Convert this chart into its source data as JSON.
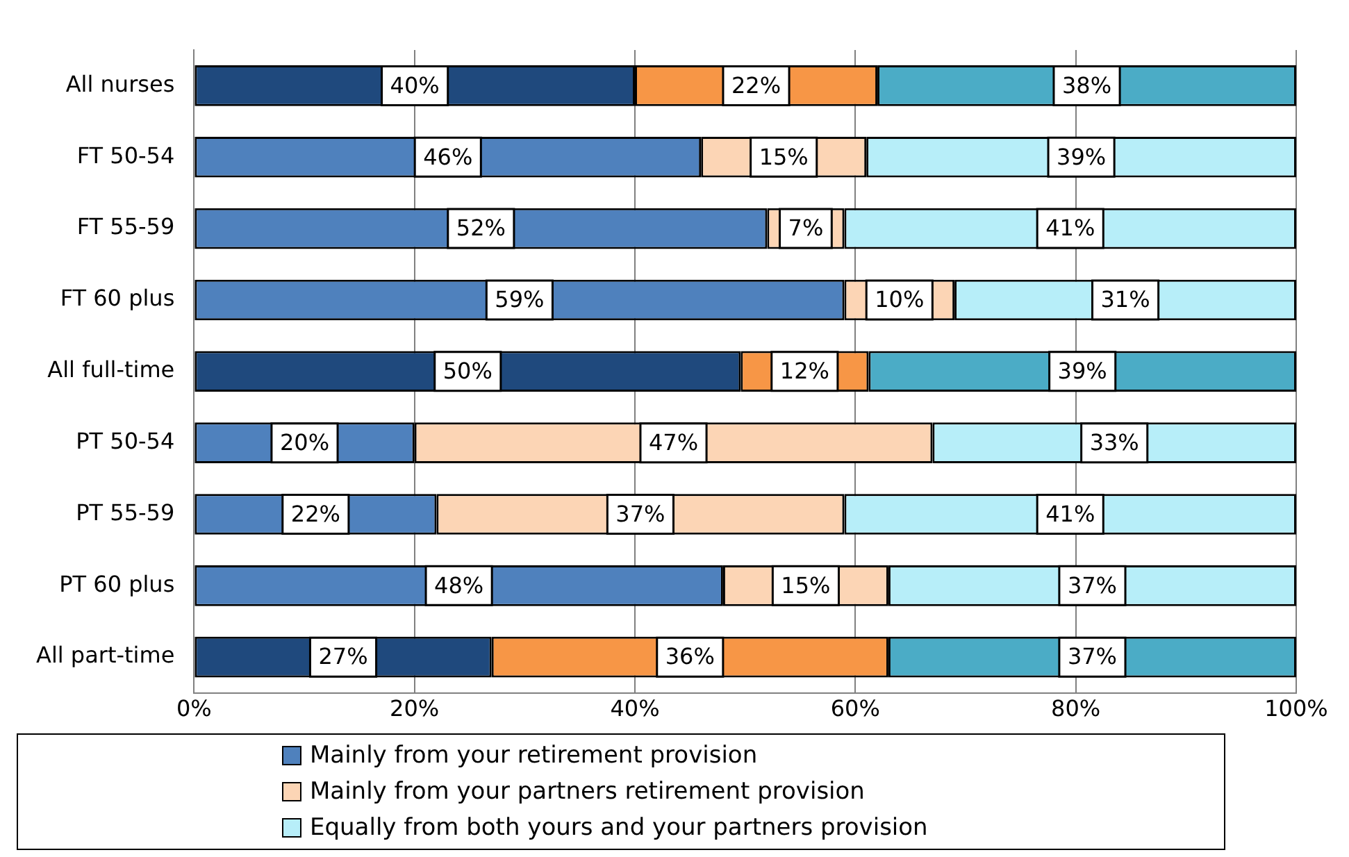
{
  "chart_data": {
    "type": "bar",
    "orientation": "horizontal",
    "stacked": true,
    "categories": [
      "All nurses",
      "FT 50-54",
      "FT 55-59",
      "FT 60 plus",
      "All full-time",
      "PT 50-54",
      "PT 55-59",
      "PT 60 plus",
      "All part-time"
    ],
    "series": [
      {
        "name": "Mainly from your retirement provision",
        "color": "#4f81bd",
        "colors": [
          "#1f497d",
          "#4f81bd",
          "#4f81bd",
          "#4f81bd",
          "#1f497d",
          "#4f81bd",
          "#4f81bd",
          "#4f81bd",
          "#1f497d"
        ],
        "values": [
          40,
          46,
          52,
          59,
          49.6,
          20,
          22,
          48,
          27
        ],
        "value_labels": [
          "40%",
          "46%",
          "52%",
          "59%",
          "50%",
          "20%",
          "22%",
          "48%",
          "27%"
        ]
      },
      {
        "name": "Mainly from your partners retirement provision",
        "color": "#fcd5b5",
        "colors": [
          "#f79646",
          "#fcd5b5",
          "#fcd5b5",
          "#fcd5b5",
          "#f79646",
          "#fcd5b5",
          "#fcd5b5",
          "#fcd5b5",
          "#f79646"
        ],
        "values": [
          22,
          15,
          7,
          10,
          11.6,
          47,
          37,
          15,
          36
        ],
        "value_labels": [
          "22%",
          "15%",
          "7%",
          "10%",
          "12%",
          "47%",
          "37%",
          "15%",
          "36%"
        ]
      },
      {
        "name": "Equally from both yours and your partners provision",
        "color": "#b7eef9",
        "colors": [
          "#4bacc6",
          "#b7eef9",
          "#b7eef9",
          "#b7eef9",
          "#4bacc6",
          "#b7eef9",
          "#b7eef9",
          "#b7eef9",
          "#4bacc6"
        ],
        "values": [
          38,
          39,
          41,
          31,
          38.8,
          33,
          41,
          37,
          37
        ],
        "value_labels": [
          "38%",
          "39%",
          "41%",
          "31%",
          "39%",
          "33%",
          "41%",
          "37%",
          "37%"
        ]
      }
    ],
    "xlim": [
      0,
      100
    ],
    "xticks": [
      {
        "value": 0,
        "label": "0%"
      },
      {
        "value": 20,
        "label": "20%"
      },
      {
        "value": 40,
        "label": "40%"
      },
      {
        "value": 60,
        "label": "60%"
      },
      {
        "value": 80,
        "label": "80%"
      },
      {
        "value": 100,
        "label": "100%"
      }
    ],
    "grid": "x",
    "legend": "bottom"
  }
}
